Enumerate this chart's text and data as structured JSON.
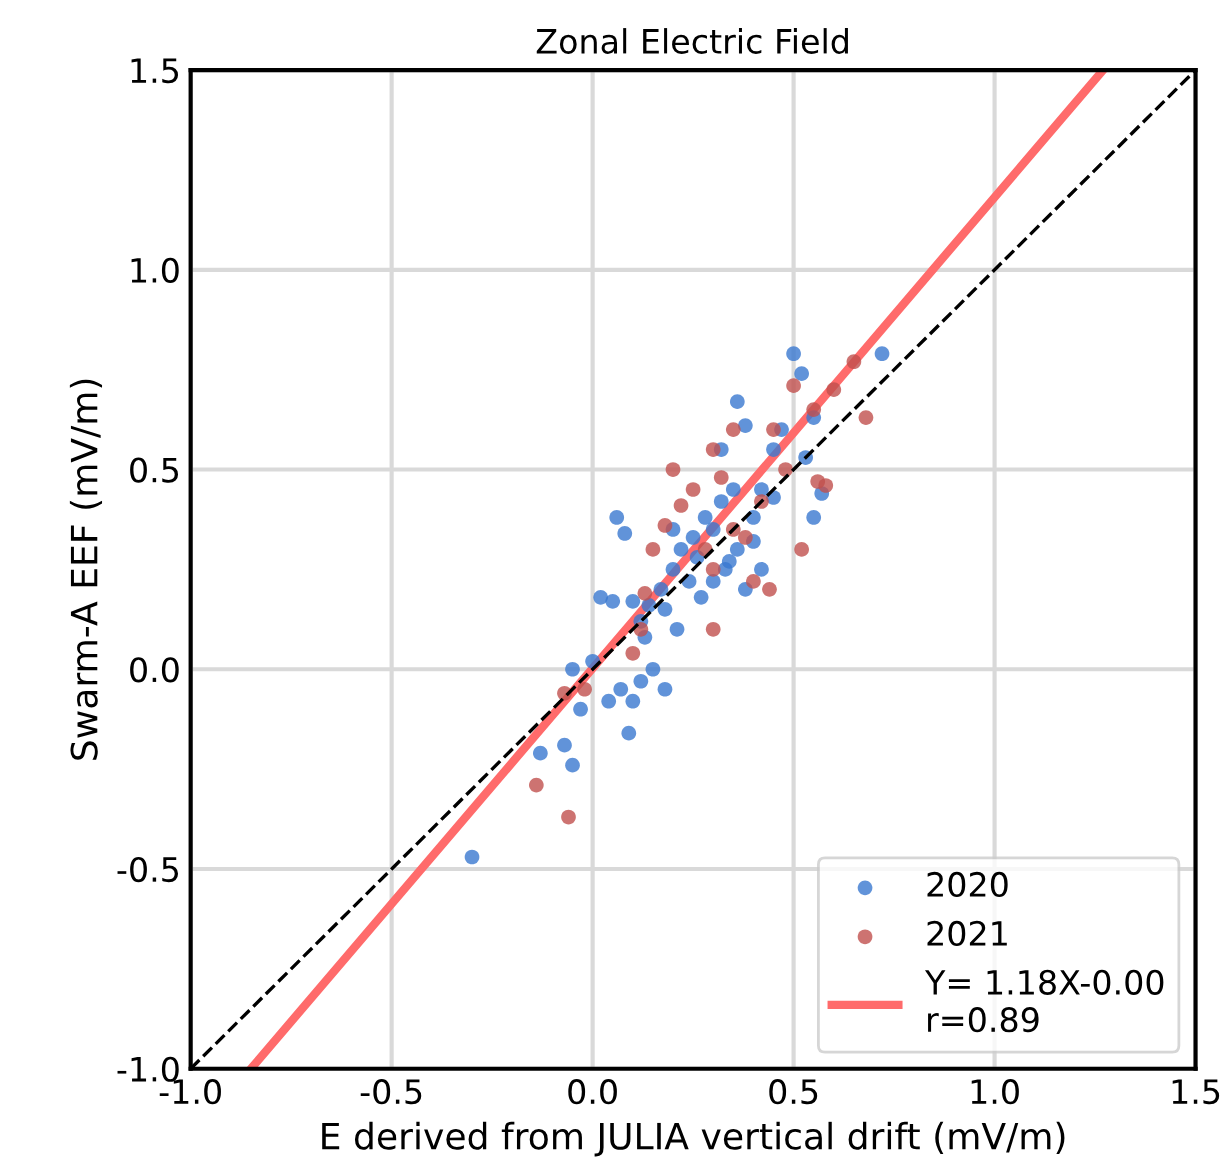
{
  "chart_data": {
    "type": "scatter",
    "title": "Zonal Electric Field",
    "xlabel": "E derived from JULIA vertical drift (mV/m)",
    "ylabel": "Swarm-A EEF (mV/m)",
    "xlim": [
      -1.0,
      1.5
    ],
    "ylim": [
      -1.0,
      1.5
    ],
    "xticks": [
      {
        "value": -1,
        "label": "-1.0"
      },
      -0.5,
      {
        "value": 0,
        "label": "0.0"
      },
      0.5,
      {
        "value": 1,
        "label": "1.0"
      },
      1.5
    ],
    "yticks": [
      {
        "value": -1,
        "label": "-1.0"
      },
      -0.5,
      {
        "value": 0,
        "label": "0.0"
      },
      0.5,
      {
        "value": 1,
        "label": "1.0"
      },
      1.5
    ],
    "grid": true,
    "legend": "bottom right",
    "series": [
      {
        "name": "2020",
        "color": "#3a78d0",
        "marker": "circle",
        "x": [
          -0.3,
          -0.13,
          -0.07,
          -0.05,
          -0.03,
          -0.05,
          0.0,
          0.02,
          0.06,
          0.08,
          0.05,
          0.1,
          0.12,
          0.13,
          0.12,
          0.07,
          0.04,
          0.1,
          0.09,
          0.18,
          0.15,
          0.14,
          0.17,
          0.2,
          0.22,
          0.25,
          0.26,
          0.28,
          0.3,
          0.32,
          0.35,
          0.32,
          0.36,
          0.38,
          0.4,
          0.42,
          0.45,
          0.47,
          0.5,
          0.52,
          0.55,
          0.57,
          0.55,
          0.72,
          0.3,
          0.33,
          0.34,
          0.38,
          0.42,
          0.27,
          0.21,
          0.24,
          0.18,
          0.2,
          0.36,
          0.4,
          0.45,
          0.53
        ],
        "values": [
          -0.47,
          -0.21,
          -0.19,
          -0.24,
          -0.1,
          0.0,
          0.02,
          0.18,
          0.38,
          0.34,
          0.17,
          0.17,
          0.12,
          0.08,
          -0.03,
          -0.05,
          -0.08,
          -0.08,
          -0.16,
          -0.05,
          0.0,
          0.16,
          0.2,
          0.25,
          0.3,
          0.33,
          0.28,
          0.38,
          0.35,
          0.42,
          0.45,
          0.55,
          0.67,
          0.61,
          0.38,
          0.45,
          0.43,
          0.6,
          0.79,
          0.74,
          0.38,
          0.44,
          0.63,
          0.79,
          0.22,
          0.25,
          0.27,
          0.2,
          0.25,
          0.18,
          0.1,
          0.22,
          0.15,
          0.35,
          0.3,
          0.32,
          0.55,
          0.53
        ]
      },
      {
        "name": "2021",
        "color": "#c0504d",
        "marker": "circle",
        "x": [
          -0.14,
          -0.06,
          -0.07,
          -0.02,
          0.12,
          0.13,
          0.1,
          0.2,
          0.15,
          0.18,
          0.22,
          0.3,
          0.35,
          0.32,
          0.3,
          0.35,
          0.38,
          0.42,
          0.45,
          0.48,
          0.5,
          0.55,
          0.56,
          0.58,
          0.6,
          0.65,
          0.68,
          0.44,
          0.52,
          0.3,
          0.4,
          0.25,
          0.28
        ],
        "values": [
          -0.29,
          -0.37,
          -0.06,
          -0.05,
          0.1,
          0.19,
          0.04,
          0.5,
          0.3,
          0.36,
          0.41,
          0.55,
          0.6,
          0.48,
          0.25,
          0.35,
          0.33,
          0.42,
          0.6,
          0.5,
          0.71,
          0.65,
          0.47,
          0.46,
          0.7,
          0.77,
          0.63,
          0.2,
          0.3,
          0.1,
          0.22,
          0.45,
          0.3
        ]
      },
      {
        "type": "line",
        "color": "#000000",
        "line_style": "dashed",
        "marker": "none",
        "x": [
          -1.0,
          1.5
        ],
        "values": [
          -1.0,
          1.5
        ]
      },
      {
        "type": "line",
        "name": "Y= 1.18X-0.00\nr=0.89",
        "color": "#ff6b6b",
        "line_style": "solid",
        "marker": "none",
        "x": [
          -0.85,
          1.27
        ],
        "values": [
          -1.0,
          1.5
        ]
      }
    ]
  }
}
